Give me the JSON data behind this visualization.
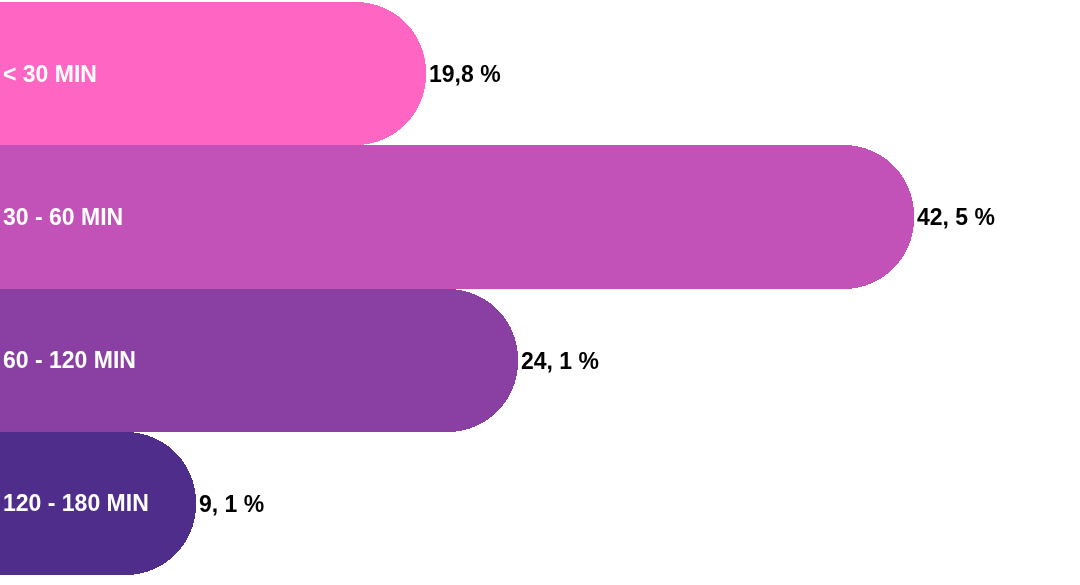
{
  "chart_data": {
    "type": "bar",
    "orientation": "horizontal",
    "categories": [
      "< 30 MIN",
      "30 - 60 MIN",
      "60 - 120 MIN",
      "120 - 180 MIN"
    ],
    "values": [
      19.8,
      42.5,
      24.1,
      9.1
    ],
    "value_labels": [
      "19,8 %",
      "42, 5 %",
      "24, 1 %",
      "9, 1 %"
    ],
    "colors": [
      "#ff66c4",
      "#c252b8",
      "#8a40a2",
      "#4f2d8a"
    ],
    "xlim": [
      0,
      50.2
    ],
    "tick_labels": "y",
    "grid": false,
    "legend": false
  }
}
